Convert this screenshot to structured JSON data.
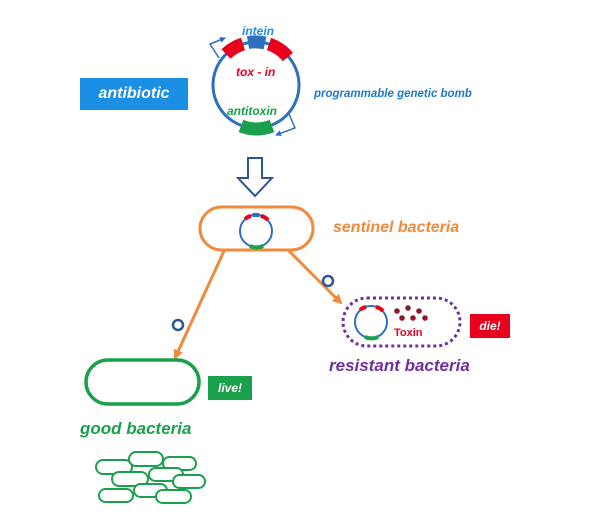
{
  "colors": {
    "blue": "#1a8fe3",
    "dark_blue": "#2e5597",
    "plasmid_blue": "#2f6fbf",
    "red": "#e8001c",
    "green": "#1aa04a",
    "orange": "#f08a3c",
    "purple": "#7030a0",
    "label_blue": "#1f7bc9",
    "dark_red": "#8b1a2a"
  },
  "plasmid": {
    "intein_label": "intein",
    "tox_label": "tox - in",
    "antitoxin_label": "antitoxin",
    "description": "programmable genetic bomb"
  },
  "antibiotic_label": "antibiotic",
  "sentinel_label": "sentinel bacteria",
  "resistant": {
    "label": "resistant bacteria",
    "toxin_label": "Toxin",
    "outcome": "die!"
  },
  "good": {
    "label": "good bacteria",
    "outcome": "live!"
  }
}
